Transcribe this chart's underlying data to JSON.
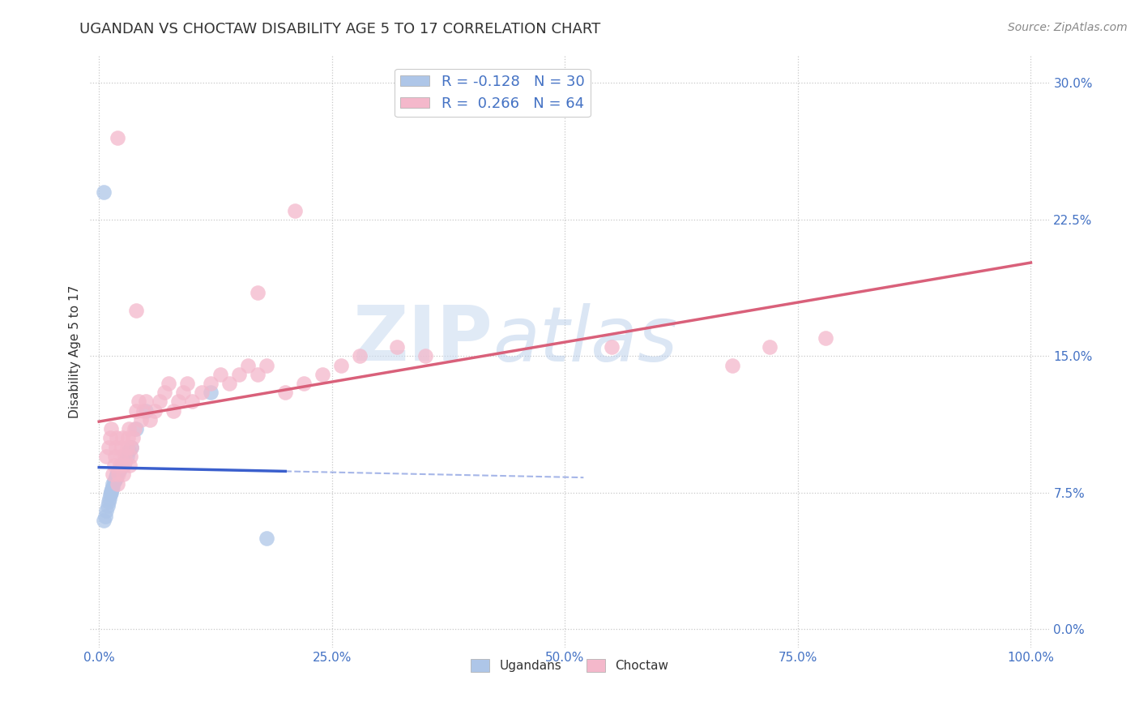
{
  "title": "UGANDAN VS CHOCTAW DISABILITY AGE 5 TO 17 CORRELATION CHART",
  "source": "Source: ZipAtlas.com",
  "ylabel": "Disability Age 5 to 17",
  "xlim": [
    -0.01,
    1.02
  ],
  "ylim": [
    -0.01,
    0.315
  ],
  "xticks": [
    0.0,
    0.25,
    0.5,
    0.75,
    1.0
  ],
  "xtick_labels": [
    "0.0%",
    "25.0%",
    "50.0%",
    "75.0%",
    "100.0%"
  ],
  "yticks": [
    0.0,
    0.075,
    0.15,
    0.225,
    0.3
  ],
  "ytick_labels": [
    "0.0%",
    "7.5%",
    "15.0%",
    "22.5%",
    "30.0%"
  ],
  "ugandan_R": -0.128,
  "ugandan_N": 30,
  "choctaw_R": 0.266,
  "choctaw_N": 64,
  "ugandan_color": "#aec6e8",
  "choctaw_color": "#f4b8cb",
  "ugandan_line_color": "#3a5fcd",
  "choctaw_line_color": "#d9607a",
  "legend_labels": [
    "Ugandans",
    "Choctaw"
  ],
  "ugandan_x": [
    0.005,
    0.007,
    0.008,
    0.009,
    0.01,
    0.011,
    0.012,
    0.013,
    0.013,
    0.014,
    0.015,
    0.015,
    0.016,
    0.017,
    0.018,
    0.018,
    0.019,
    0.02,
    0.021,
    0.022,
    0.025,
    0.028,
    0.03,
    0.032,
    0.035,
    0.04,
    0.05,
    0.12,
    0.18,
    0.005
  ],
  "ugandan_y": [
    0.06,
    0.062,
    0.065,
    0.068,
    0.07,
    0.072,
    0.074,
    0.075,
    0.076,
    0.077,
    0.078,
    0.08,
    0.081,
    0.082,
    0.083,
    0.084,
    0.085,
    0.086,
    0.087,
    0.088,
    0.09,
    0.092,
    0.095,
    0.098,
    0.1,
    0.11,
    0.12,
    0.13,
    0.05,
    0.24
  ],
  "choctaw_x": [
    0.008,
    0.01,
    0.012,
    0.013,
    0.015,
    0.016,
    0.017,
    0.018,
    0.019,
    0.02,
    0.021,
    0.022,
    0.023,
    0.024,
    0.025,
    0.026,
    0.027,
    0.028,
    0.03,
    0.031,
    0.032,
    0.033,
    0.034,
    0.035,
    0.036,
    0.038,
    0.04,
    0.042,
    0.045,
    0.048,
    0.05,
    0.055,
    0.06,
    0.065,
    0.07,
    0.075,
    0.08,
    0.085,
    0.09,
    0.095,
    0.1,
    0.11,
    0.12,
    0.13,
    0.14,
    0.15,
    0.16,
    0.17,
    0.18,
    0.2,
    0.22,
    0.24,
    0.26,
    0.28,
    0.32,
    0.35,
    0.55,
    0.68,
    0.72,
    0.78,
    0.04,
    0.17,
    0.02,
    0.21
  ],
  "choctaw_y": [
    0.095,
    0.1,
    0.105,
    0.11,
    0.085,
    0.09,
    0.095,
    0.1,
    0.105,
    0.08,
    0.085,
    0.09,
    0.095,
    0.1,
    0.105,
    0.085,
    0.09,
    0.095,
    0.1,
    0.105,
    0.11,
    0.09,
    0.095,
    0.1,
    0.105,
    0.11,
    0.12,
    0.125,
    0.115,
    0.12,
    0.125,
    0.115,
    0.12,
    0.125,
    0.13,
    0.135,
    0.12,
    0.125,
    0.13,
    0.135,
    0.125,
    0.13,
    0.135,
    0.14,
    0.135,
    0.14,
    0.145,
    0.14,
    0.145,
    0.13,
    0.135,
    0.14,
    0.145,
    0.15,
    0.155,
    0.15,
    0.155,
    0.145,
    0.155,
    0.16,
    0.175,
    0.185,
    0.27,
    0.23
  ],
  "background_color": "#ffffff",
  "grid_color": "#c8c8c8",
  "watermark_top": "ZIP",
  "watermark_bottom": "atlas",
  "title_fontsize": 13,
  "axis_label_fontsize": 11,
  "tick_fontsize": 11,
  "legend_fontsize": 13,
  "source_fontsize": 10
}
